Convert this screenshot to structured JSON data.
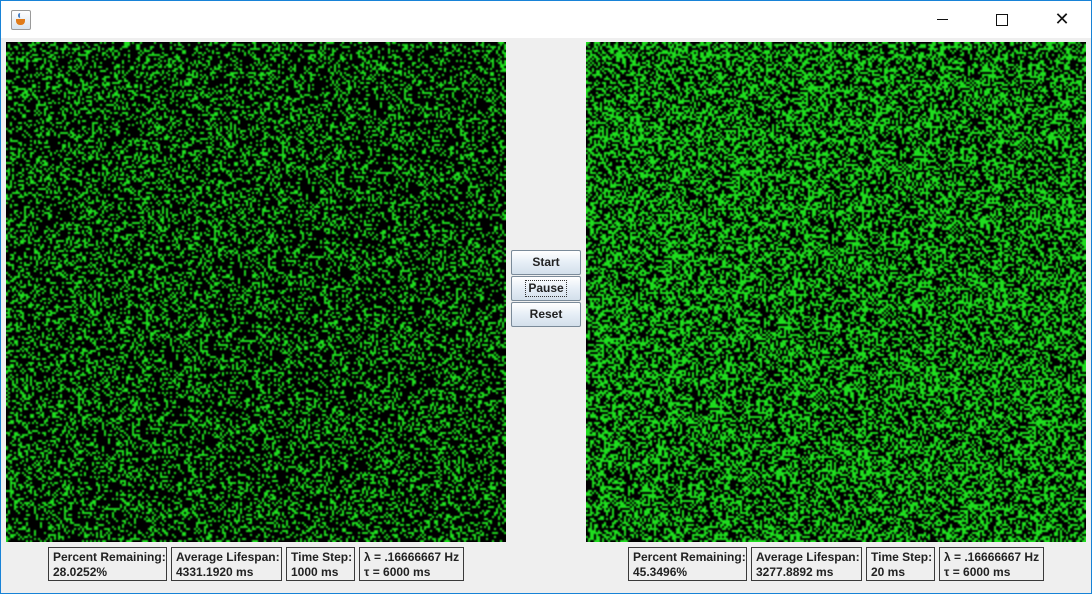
{
  "window": {
    "title": ""
  },
  "titlebar": {
    "minimize_glyph": "",
    "maximize_glyph": "",
    "close_glyph": "✕"
  },
  "controls": {
    "start_label": "Start",
    "pause_label": "Pause",
    "reset_label": "Reset",
    "focused": "pause"
  },
  "colors": {
    "cell_alive": "#1fdc1f",
    "cell_dead": "#000000",
    "window_border": "#1883d7"
  },
  "left": {
    "simulation": {
      "density": 0.28
    },
    "percent_label": "Percent Remaining:",
    "percent_value": "28.0252%",
    "lifespan_label": "Average Lifespan:",
    "lifespan_value": "4331.1920 ms",
    "step_label": "Time Step:",
    "step_value": "1000 ms",
    "lambda_text": "λ = .16666667 Hz",
    "tau_text": "τ = 6000 ms"
  },
  "right": {
    "simulation": {
      "density": 0.45
    },
    "percent_label": "Percent Remaining:",
    "percent_value": "45.3496%",
    "lifespan_label": "Average Lifespan:",
    "lifespan_value": "3277.8892 ms",
    "step_label": "Time Step:",
    "step_value": "20 ms",
    "lambda_text": "λ = .16666667 Hz",
    "tau_text": "τ = 6000 ms"
  }
}
